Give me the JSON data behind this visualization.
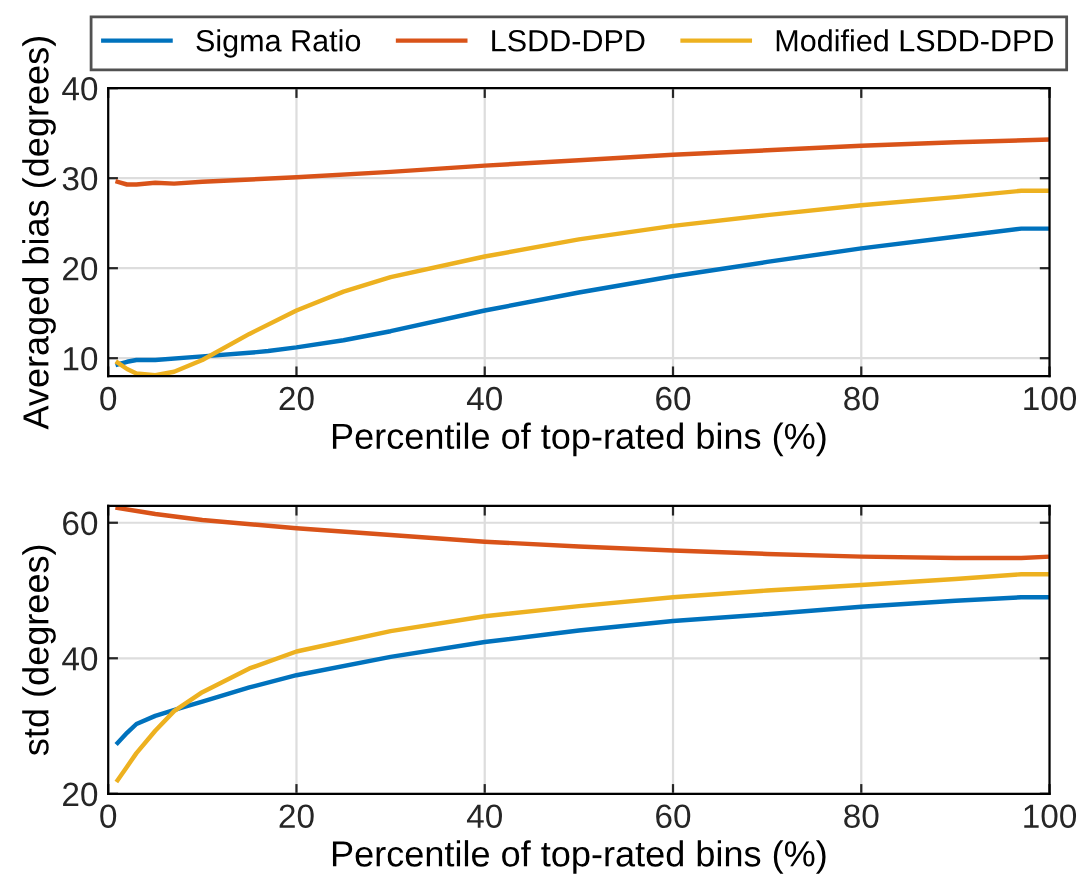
{
  "chart_data": [
    {
      "type": "line",
      "xlabel": "Percentile of top-rated bins (%)",
      "ylabel": "Averaged bias (degrees)",
      "xlim": [
        0,
        100
      ],
      "xticks": [
        0,
        20,
        40,
        60,
        80,
        100
      ],
      "ylim": [
        8,
        40
      ],
      "yticks": [
        10,
        20,
        30,
        40
      ],
      "grid": true,
      "legend": "top",
      "marker": "none",
      "line_style": "solid",
      "series": [
        {
          "name": "Sigma Ratio",
          "color": "#0072bd",
          "x": [
            1,
            2,
            3,
            5,
            10,
            15,
            17,
            20,
            25,
            30,
            40,
            50,
            60,
            70,
            80,
            90,
            97,
            100
          ],
          "values": [
            9.3,
            9.6,
            9.8,
            9.8,
            10.2,
            10.6,
            10.8,
            11.2,
            12.0,
            13.0,
            15.3,
            17.3,
            19.1,
            20.7,
            22.2,
            23.5,
            24.4,
            24.4
          ]
        },
        {
          "name": "LSDD-DPD",
          "color": "#d95319",
          "x": [
            1,
            2,
            3,
            5,
            7,
            10,
            20,
            30,
            40,
            50,
            60,
            70,
            80,
            90,
            100
          ],
          "values": [
            29.6,
            29.3,
            29.3,
            29.5,
            29.4,
            29.6,
            30.1,
            30.7,
            31.4,
            32.0,
            32.6,
            33.1,
            33.6,
            34.0,
            34.3
          ]
        },
        {
          "name": "Modified LSDD-DPD",
          "color": "#edb120",
          "x": [
            1,
            2,
            3,
            5,
            7,
            10,
            15,
            20,
            25,
            30,
            40,
            50,
            60,
            70,
            80,
            90,
            97,
            100
          ],
          "values": [
            9.5,
            8.8,
            8.3,
            8.1,
            8.5,
            9.8,
            12.7,
            15.3,
            17.4,
            19.0,
            21.3,
            23.2,
            24.7,
            25.9,
            27.0,
            27.9,
            28.6,
            28.6
          ]
        }
      ]
    },
    {
      "type": "line",
      "xlabel": "Percentile of top-rated bins (%)",
      "ylabel": "std (degrees)",
      "xlim": [
        0,
        100
      ],
      "xticks": [
        0,
        20,
        40,
        60,
        80,
        100
      ],
      "ylim": [
        20,
        62.5
      ],
      "yticks": [
        20,
        40,
        60
      ],
      "grid": true,
      "marker": "none",
      "line_style": "solid",
      "series": [
        {
          "color": "#0072bd",
          "x": [
            1,
            2,
            3,
            5,
            8,
            10,
            15,
            20,
            30,
            40,
            50,
            60,
            70,
            80,
            90,
            97,
            100
          ],
          "values": [
            27.5,
            29,
            30.3,
            31.5,
            32.8,
            33.6,
            35.7,
            37.5,
            40.2,
            42.4,
            44.1,
            45.5,
            46.5,
            47.6,
            48.5,
            49.0,
            49.0
          ]
        },
        {
          "color": "#d95319",
          "x": [
            1,
            5,
            10,
            20,
            30,
            40,
            50,
            60,
            70,
            80,
            90,
            97,
            100
          ],
          "values": [
            62.2,
            61.3,
            60.4,
            59.2,
            58.2,
            57.2,
            56.5,
            55.9,
            55.4,
            55.0,
            54.8,
            54.8,
            55.0
          ]
        },
        {
          "color": "#edb120",
          "x": [
            1,
            2,
            3,
            5,
            7,
            10,
            15,
            20,
            30,
            40,
            50,
            60,
            70,
            80,
            90,
            97,
            100
          ],
          "values": [
            22,
            24,
            26,
            29.3,
            32.2,
            35,
            38.5,
            41.0,
            44.0,
            46.2,
            47.7,
            49.0,
            50.0,
            50.8,
            51.7,
            52.4,
            52.4
          ]
        }
      ]
    }
  ]
}
